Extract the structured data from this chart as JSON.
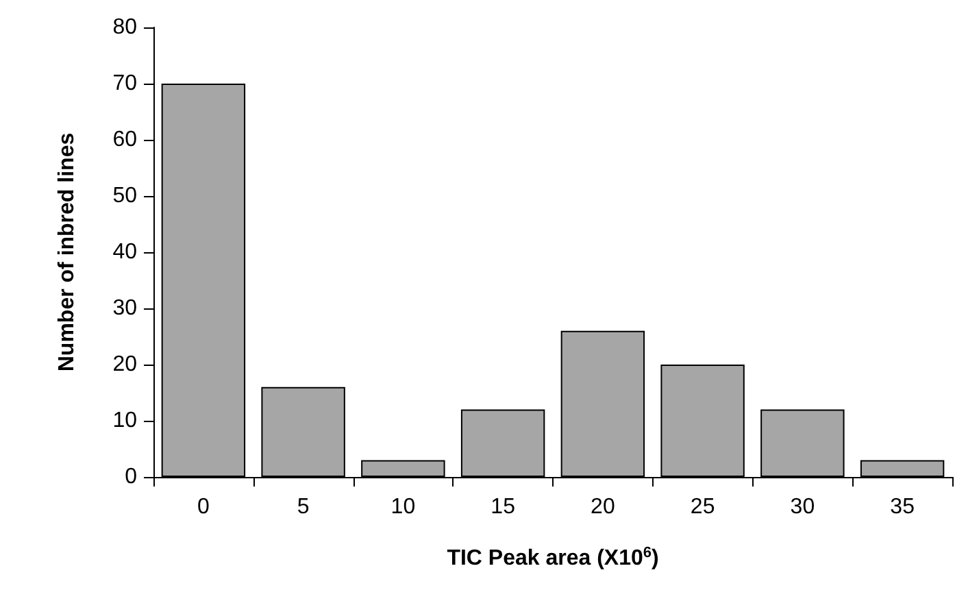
{
  "chart_data": {
    "type": "bar",
    "xlabel": "TIC Peak area (X10$^{6}$)",
    "ylabel": "Number of inbred lines",
    "categories": [
      "0",
      "5",
      "10",
      "15",
      "20",
      "25",
      "30",
      "35"
    ],
    "values": [
      70,
      16,
      3,
      12,
      26,
      20,
      12,
      3
    ],
    "color": "#a6a6a6",
    "ylim": [
      0,
      80
    ],
    "yticks": [
      0,
      10,
      20,
      30,
      40,
      50,
      60,
      70,
      80
    ],
    "grid": false
  }
}
